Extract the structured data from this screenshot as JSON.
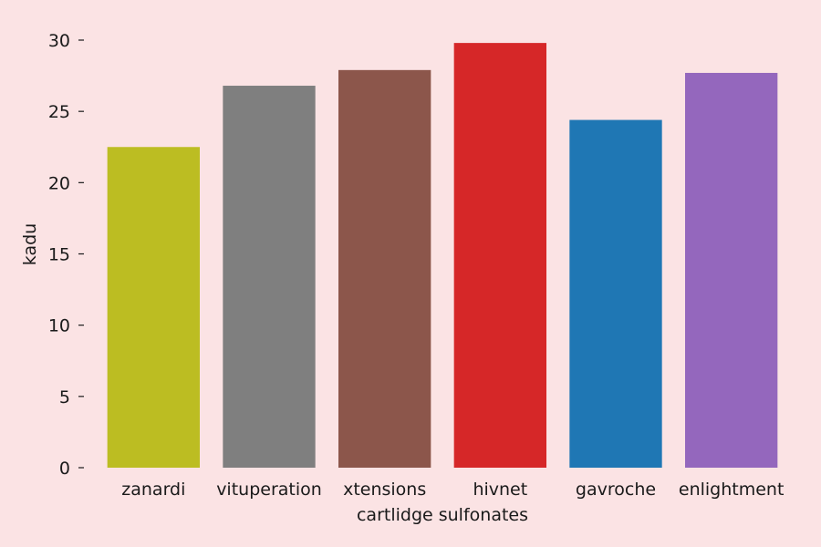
{
  "chart_data": {
    "type": "bar",
    "title": "",
    "xlabel": "cartlidge sulfonates",
    "ylabel": "kadu",
    "categories": [
      "zanardi",
      "vituperation",
      "xtensions",
      "hivnet",
      "gavroche",
      "enlightment"
    ],
    "values": [
      22.5,
      26.8,
      27.9,
      29.8,
      24.4,
      27.7
    ],
    "colors": [
      "#bcbd22",
      "#7f7f7f",
      "#8c564b",
      "#d62728",
      "#1f77b4",
      "#9467bd"
    ],
    "ylim": [
      0,
      30
    ],
    "yticks": [
      0,
      5,
      10,
      15,
      20,
      25,
      30
    ],
    "grid": false,
    "legend": "none"
  },
  "style": {
    "background": "#fbe3e4"
  }
}
